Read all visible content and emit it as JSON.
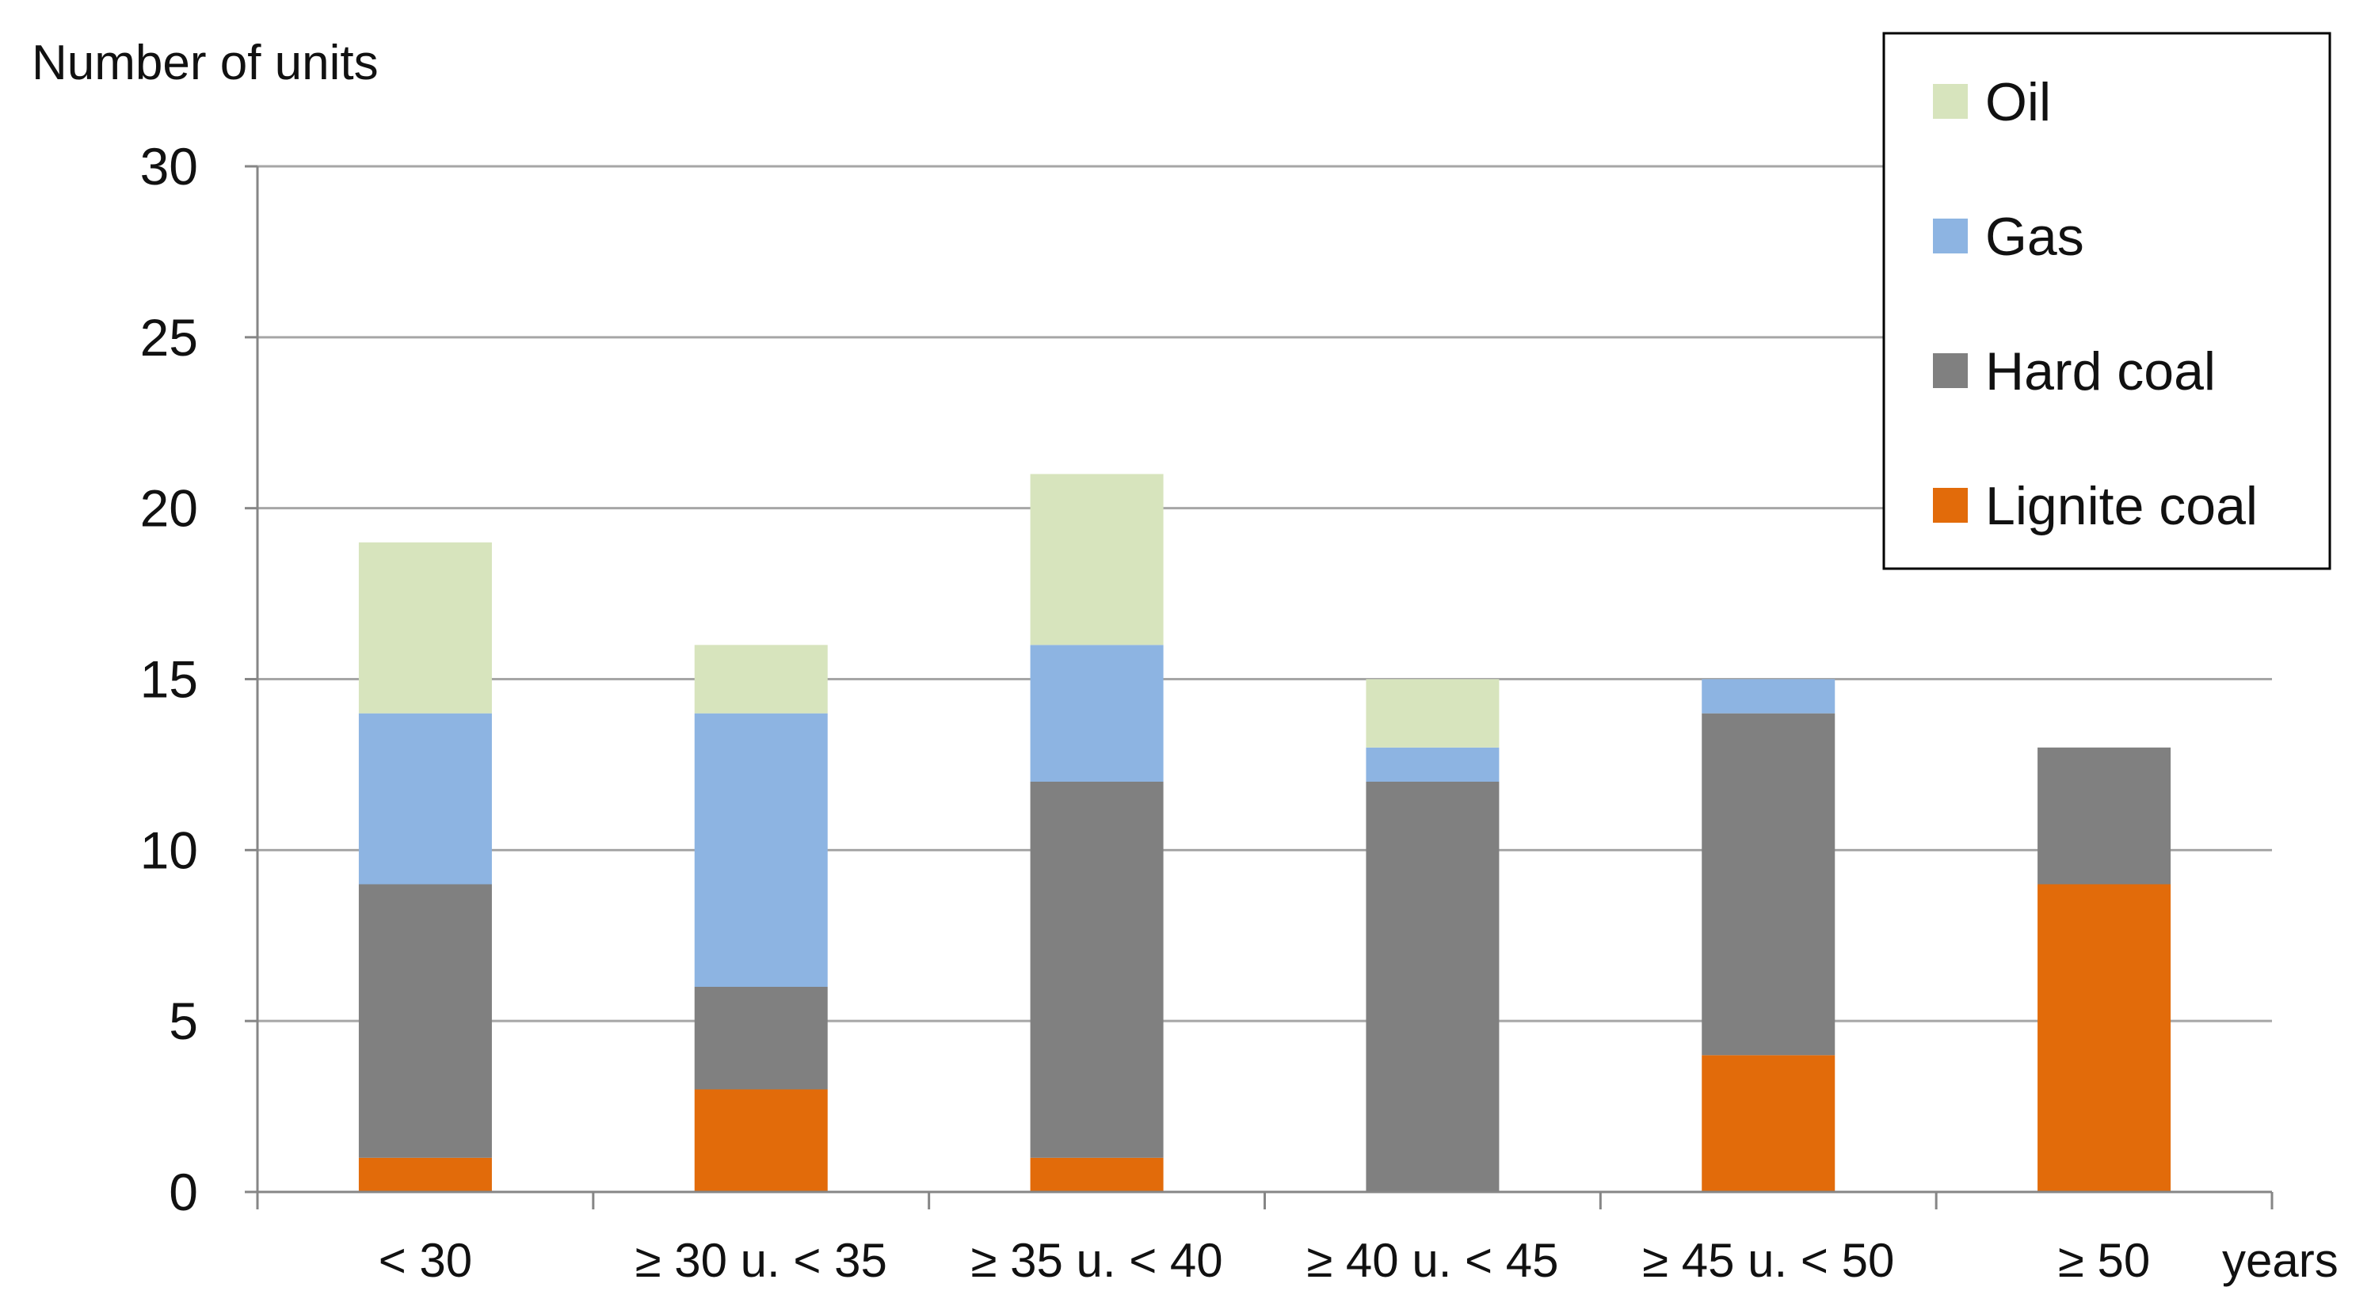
{
  "chart_data": {
    "type": "bar",
    "stacked": true,
    "ylabel": "Number of units",
    "xlabel": "years",
    "ylim": [
      0,
      30
    ],
    "yticks": [
      0,
      5,
      10,
      15,
      20,
      25,
      30
    ],
    "grid": true,
    "legend_position": "top-right",
    "categories": [
      "< 30",
      "≥ 30 u. < 35",
      "≥ 35 u. < 40",
      "≥ 40 u. < 45",
      "≥ 45 u. < 50",
      "≥ 50"
    ],
    "series": [
      {
        "name": "Lignite coal",
        "color": "#E26B0A",
        "values": [
          1,
          3,
          1,
          0,
          4,
          9
        ]
      },
      {
        "name": "Hard coal",
        "color": "#808080",
        "values": [
          8,
          3,
          11,
          12,
          10,
          4
        ]
      },
      {
        "name": "Gas",
        "color": "#8DB4E2",
        "values": [
          5,
          8,
          4,
          1,
          1,
          0
        ]
      },
      {
        "name": "Oil",
        "color": "#D7E4BD",
        "values": [
          5,
          2,
          5,
          2,
          0,
          0
        ]
      }
    ],
    "legend_order": [
      "Oil",
      "Gas",
      "Hard coal",
      "Lignite coal"
    ],
    "colors": {
      "grid": "#A6A6A6",
      "axis": "#868686",
      "legend_border": "#000000"
    }
  }
}
